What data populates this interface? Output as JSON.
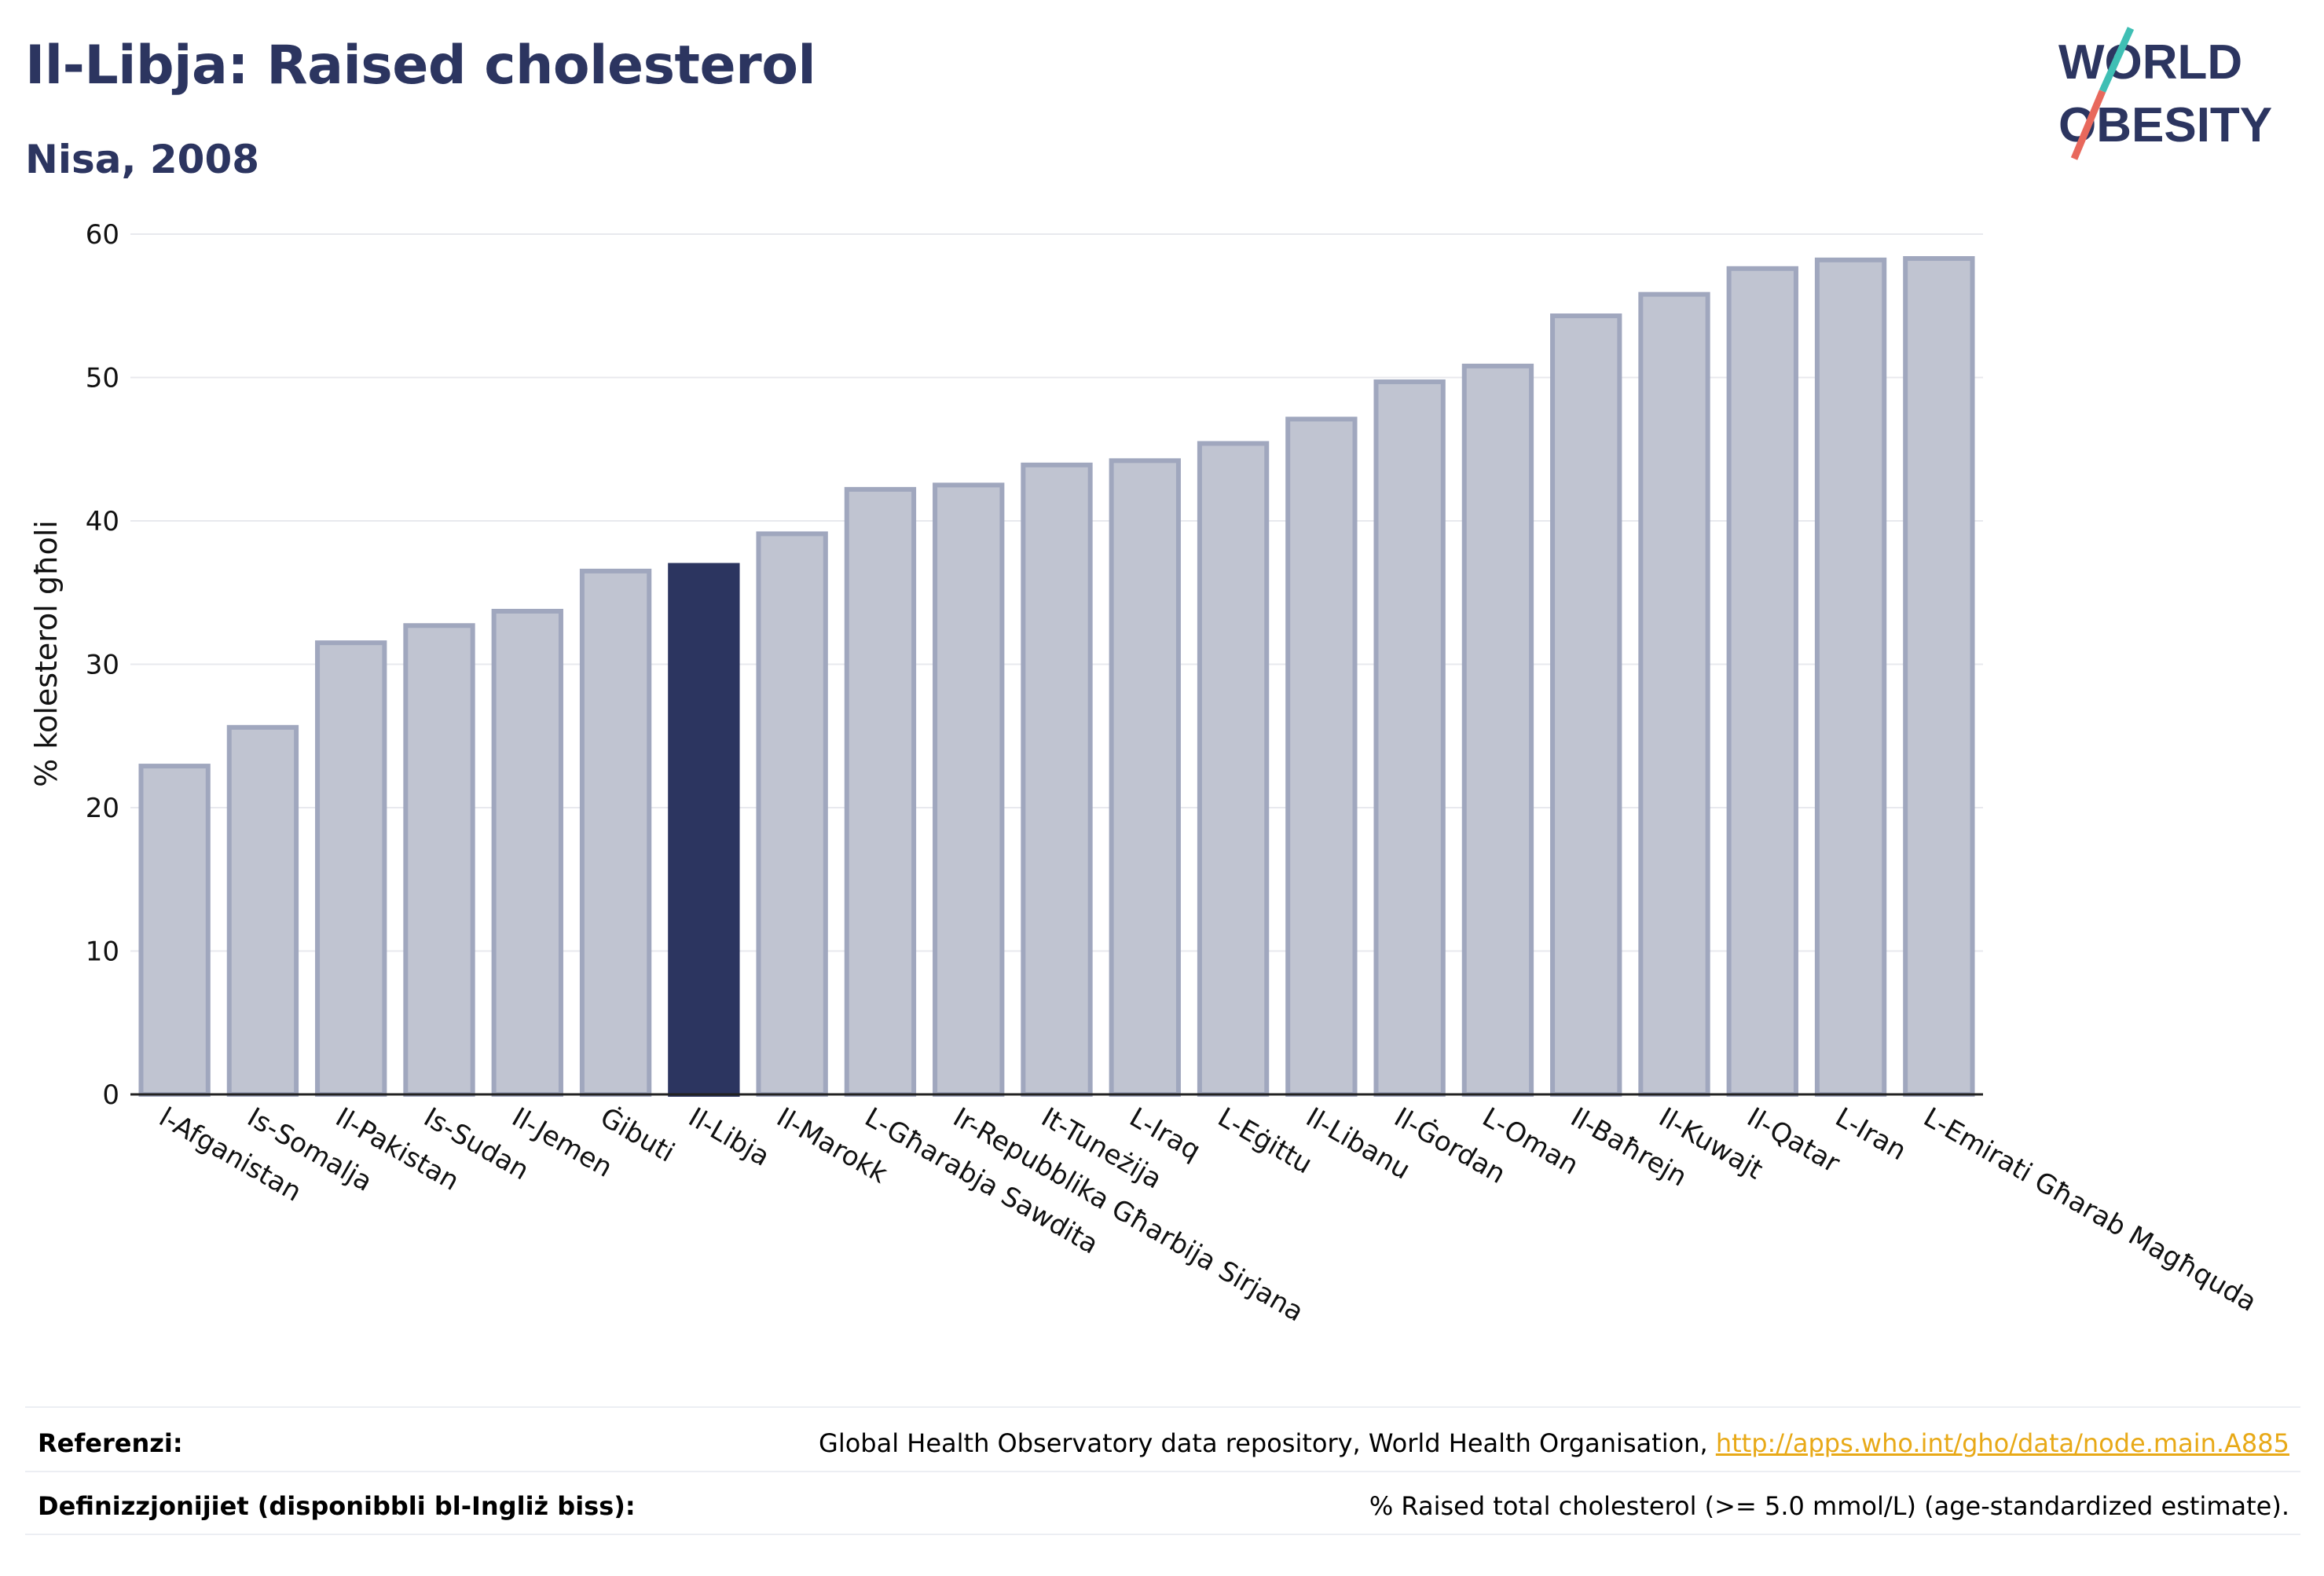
{
  "header": {
    "title": "Il-Libja: Raised cholesterol",
    "subtitle": "Nisa, 2008"
  },
  "logo": {
    "line1": "WORLD",
    "line2": "OBESITY",
    "slash_colors": [
      "#3fbfb4",
      "#e8685c"
    ]
  },
  "chart_data": {
    "type": "bar",
    "ylabel": "% kolesterol għoli",
    "ylim": [
      0,
      60
    ],
    "yticks": [
      0,
      10,
      20,
      30,
      40,
      50,
      60
    ],
    "grid": true,
    "categories": [
      "l-Afganistan",
      "Is-Somalja",
      "Il-Pakistan",
      "Is-Sudan",
      "Il-Jemen",
      "Ġibuti",
      "Il-Libja",
      "Il-Marokk",
      "L-Għarabja Sawdita",
      "Ir-Repubblika Għarbija Sirjana",
      "It-Tuneżija",
      "L-Iraq",
      "L-Eġittu",
      "Il-Libanu",
      "Il-Ġordan",
      "L-Oman",
      "Il-Baħrejn",
      "Il-Kuwajt",
      "Il-Qatar",
      "L-Iran",
      "L-Emirati Għarab Magħquda"
    ],
    "values": [
      22.9,
      25.6,
      31.5,
      32.7,
      33.7,
      36.5,
      36.9,
      39.1,
      42.2,
      42.5,
      43.9,
      44.2,
      45.4,
      47.1,
      49.7,
      50.8,
      54.3,
      55.8,
      57.6,
      58.2,
      58.3
    ],
    "highlight_index": 6,
    "colors": {
      "bar": "#c0c4d1",
      "bar_edge": "#a0a7be",
      "highlight": "#2c3560",
      "grid": "#e8e9ee"
    }
  },
  "footer": {
    "reference_label": "Referenzi:",
    "reference_text": "Global Health Observatory data repository, World Health Organisation, ",
    "reference_link": "http://apps.who.int/gho/data/node.main.A885",
    "definition_label": "Definizzjonijiet (disponibbli bl-Ingliż biss):",
    "definition_text": "% Raised total cholesterol (>= 5.0 mmol/L) (age-standardized estimate)."
  }
}
